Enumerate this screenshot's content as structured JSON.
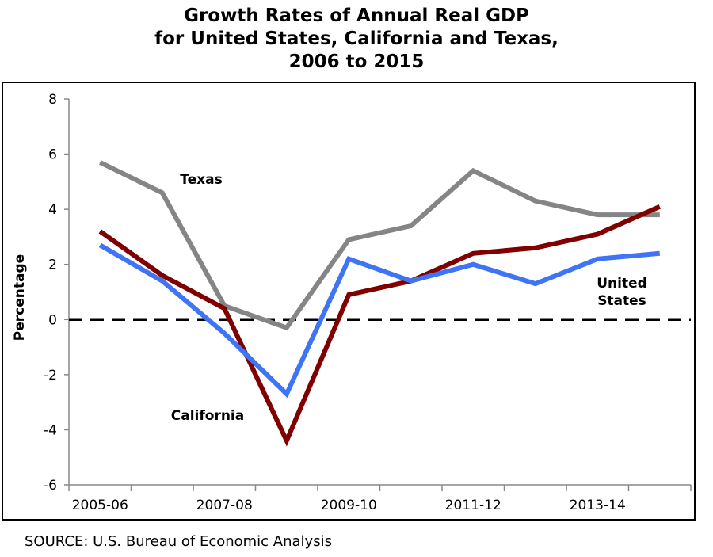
{
  "title_lines": [
    "Growth Rates of Annual Real GDP",
    "for United States, California and Texas,",
    "2006 to 2015"
  ],
  "source": "SOURCE: U.S. Bureau of Economic Analysis",
  "chart_data": {
    "type": "line",
    "title": "Growth Rates of Annual Real GDP for United States, California and Texas, 2006 to 2015",
    "ylabel": "Percentage",
    "xlabel": "",
    "ylim": [
      -6,
      8
    ],
    "yticks": [
      -6,
      -4,
      -2,
      0,
      2,
      4,
      6,
      8
    ],
    "x": [
      "2005-06",
      "2006-07",
      "2007-08",
      "2008-09",
      "2009-10",
      "2010-11",
      "2011-12",
      "2012-13",
      "2013-14",
      "2014-15"
    ],
    "x_tick_labels": [
      "2005-06",
      "2007-08",
      "2009-10",
      "2011-12",
      "2013-14"
    ],
    "zero_line": "dashed",
    "grid": false,
    "legend": "inline labels",
    "series": [
      {
        "name": "Texas",
        "color": "#858585",
        "values": [
          5.7,
          4.6,
          0.5,
          -0.3,
          2.9,
          3.4,
          5.4,
          4.3,
          3.8,
          3.8
        ]
      },
      {
        "name": "California",
        "color": "#800000",
        "values": [
          3.2,
          1.6,
          0.4,
          -4.4,
          0.9,
          1.4,
          2.4,
          2.6,
          3.1,
          4.1
        ]
      },
      {
        "name": "United States",
        "label_lines": [
          "United",
          "States"
        ],
        "color": "#3e74f5",
        "values": [
          2.7,
          1.4,
          -0.5,
          -2.7,
          2.2,
          1.4,
          2.0,
          1.3,
          2.2,
          2.4
        ]
      }
    ]
  }
}
